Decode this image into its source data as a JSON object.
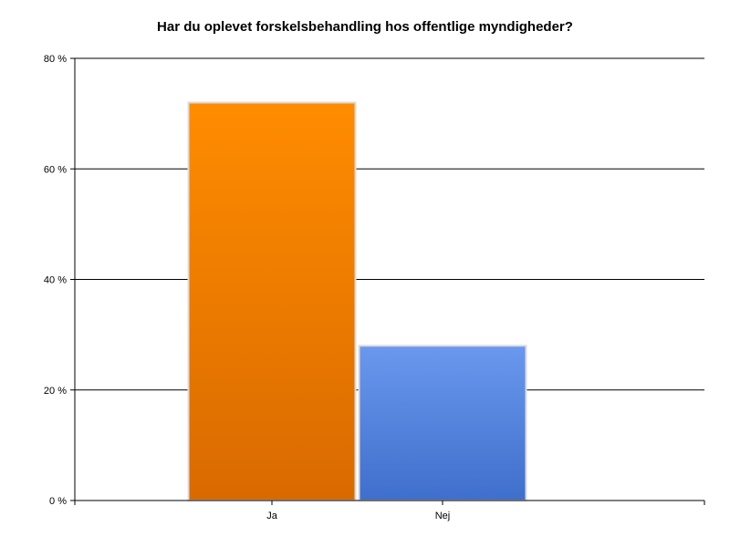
{
  "chart_data": {
    "type": "bar",
    "title": "Har du oplevet forskelsbehandling hos offentlige myndigheder?",
    "xlabel": "",
    "ylabel": "",
    "categories": [
      "Ja",
      "Nej"
    ],
    "values": [
      72,
      28
    ],
    "ylim": [
      0,
      80
    ],
    "yticks": [
      0,
      20,
      40,
      60,
      80
    ],
    "ytick_labels": [
      "0 %",
      "20 %",
      "40 %",
      "60 %",
      "80 %"
    ],
    "grid": true,
    "legend": "none",
    "bar_colors": [
      {
        "top": "#ff8c00",
        "bottom": "#d96a00"
      },
      {
        "top": "#6a98ee",
        "bottom": "#3f6fcc"
      }
    ],
    "bar_border_color": "#dcdcdc"
  }
}
